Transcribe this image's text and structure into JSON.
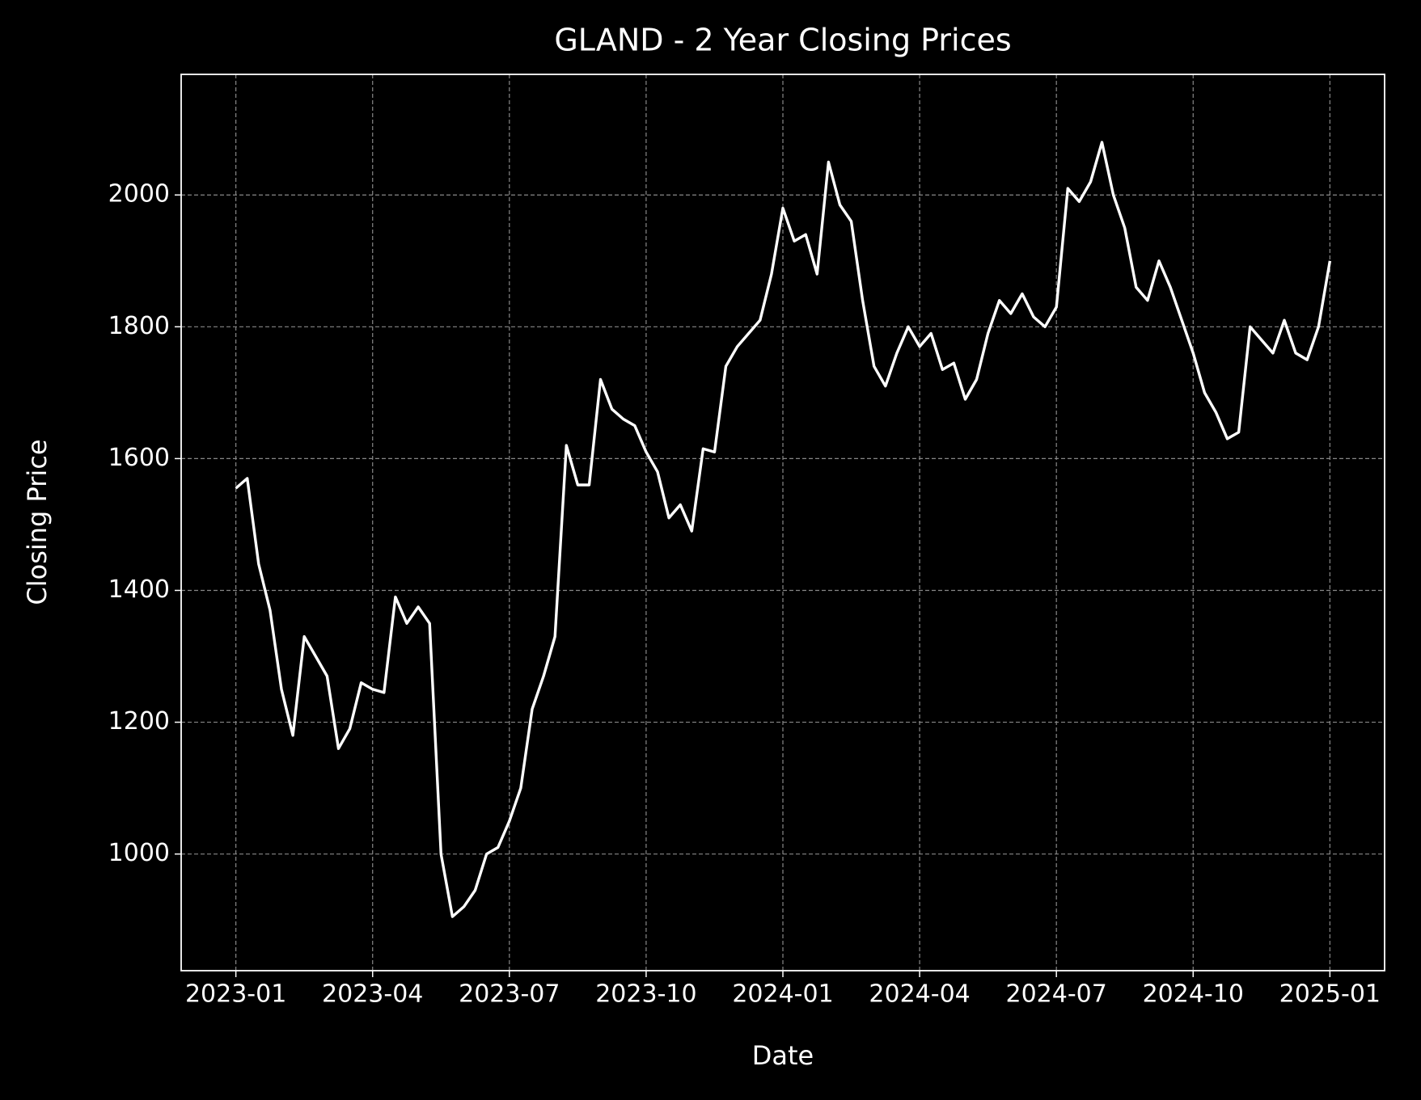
{
  "chart_data": {
    "type": "line",
    "title": "GLAND - 2 Year Closing Prices",
    "xlabel": "Date",
    "ylabel": "Closing Price",
    "x": [
      "2023-01",
      "2023-01",
      "2023-01",
      "2023-01",
      "2023-02",
      "2023-02",
      "2023-02",
      "2023-02",
      "2023-03",
      "2023-03",
      "2023-03",
      "2023-03",
      "2023-04",
      "2023-04",
      "2023-04",
      "2023-04",
      "2023-05",
      "2023-05",
      "2023-05",
      "2023-05",
      "2023-06",
      "2023-06",
      "2023-06",
      "2023-06",
      "2023-07",
      "2023-07",
      "2023-07",
      "2023-07",
      "2023-08",
      "2023-08",
      "2023-08",
      "2023-08",
      "2023-09",
      "2023-09",
      "2023-09",
      "2023-09",
      "2023-10",
      "2023-10",
      "2023-10",
      "2023-10",
      "2023-11",
      "2023-11",
      "2023-11",
      "2023-11",
      "2023-12",
      "2023-12",
      "2023-12",
      "2023-12",
      "2024-01",
      "2024-01",
      "2024-01",
      "2024-01",
      "2024-02",
      "2024-02",
      "2024-02",
      "2024-02",
      "2024-03",
      "2024-03",
      "2024-03",
      "2024-03",
      "2024-04",
      "2024-04",
      "2024-04",
      "2024-04",
      "2024-05",
      "2024-05",
      "2024-05",
      "2024-05",
      "2024-06",
      "2024-06",
      "2024-06",
      "2024-06",
      "2024-07",
      "2024-07",
      "2024-07",
      "2024-07",
      "2024-08",
      "2024-08",
      "2024-08",
      "2024-08",
      "2024-09",
      "2024-09",
      "2024-09",
      "2024-09",
      "2024-10",
      "2024-10",
      "2024-10",
      "2024-10",
      "2024-11",
      "2024-11",
      "2024-11",
      "2024-11",
      "2024-12",
      "2024-12",
      "2024-12",
      "2024-12",
      "2025-01"
    ],
    "values": [
      1555,
      1570,
      1440,
      1370,
      1250,
      1180,
      1330,
      1300,
      1270,
      1160,
      1190,
      1260,
      1250,
      1245,
      1390,
      1350,
      1375,
      1350,
      1000,
      905,
      920,
      945,
      1000,
      1010,
      1050,
      1100,
      1220,
      1270,
      1330,
      1620,
      1560,
      1560,
      1720,
      1675,
      1660,
      1650,
      1610,
      1580,
      1510,
      1530,
      1490,
      1615,
      1610,
      1740,
      1770,
      1790,
      1810,
      1880,
      1980,
      1930,
      1940,
      1880,
      2050,
      1985,
      1960,
      1840,
      1740,
      1710,
      1760,
      1800,
      1770,
      1790,
      1735,
      1745,
      1690,
      1720,
      1790,
      1840,
      1820,
      1850,
      1815,
      1800,
      1830,
      2010,
      1990,
      2020,
      2080,
      2000,
      1950,
      1860,
      1840,
      1900,
      1860,
      1810,
      1760,
      1700,
      1670,
      1630,
      1640,
      1800,
      1780,
      1760,
      1810,
      1760,
      1750,
      1800,
      1900
    ],
    "color": "#ffffff",
    "xticks": [
      "2023-01",
      "2023-04",
      "2023-07",
      "2023-10",
      "2024-01",
      "2024-04",
      "2024-07",
      "2024-10",
      "2025-01"
    ],
    "ylim": [
      823,
      2183
    ],
    "yticks": [
      1000,
      1200,
      1400,
      1600,
      1800,
      2000
    ],
    "grid": true
  }
}
